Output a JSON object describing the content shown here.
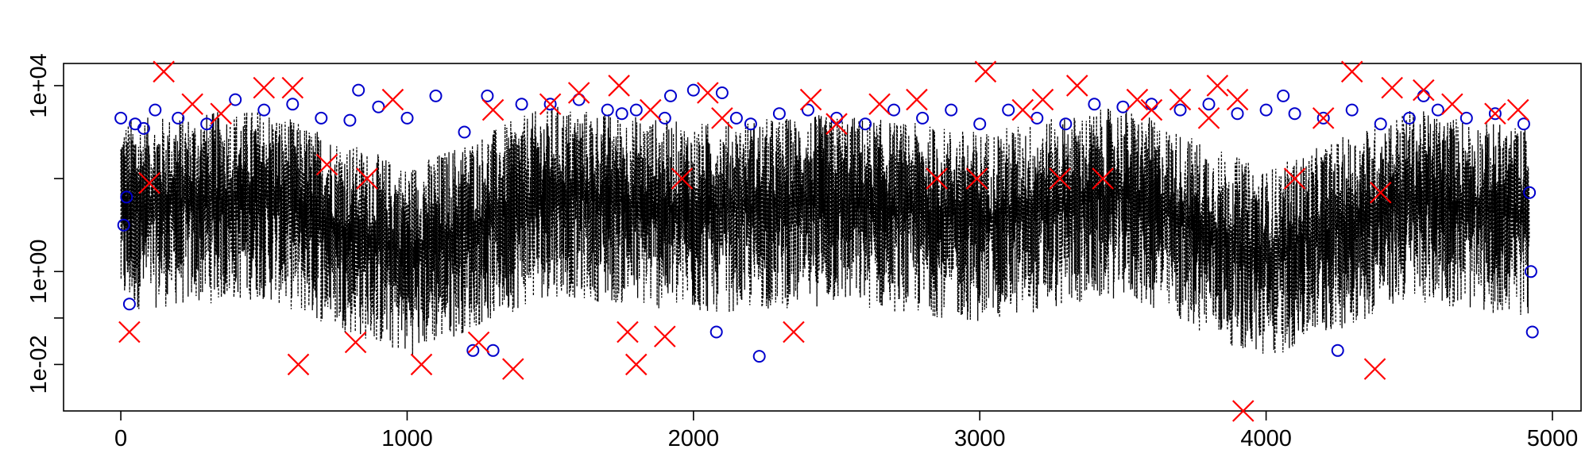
{
  "chart_data": {
    "type": "scatter",
    "title": "",
    "xlabel": "",
    "ylabel": "",
    "xlim": [
      -200,
      5100
    ],
    "ylim": [
      0.001,
      30000
    ],
    "y_scale": "log",
    "x_ticks": [
      0,
      1000,
      2000,
      3000,
      4000,
      5000
    ],
    "x_tick_labels": [
      "0",
      "1000",
      "2000",
      "3000",
      "4000",
      "5000"
    ],
    "y_ticks": [
      0.01,
      1,
      10000
    ],
    "y_tick_labels": [
      "1e-02",
      "1e+00",
      "1e+04"
    ],
    "y_minor_ticks": [
      0.1,
      100
    ],
    "n_points": 4920,
    "colors": {
      "trace": "#000000",
      "circles": "#0000cc",
      "crosses": "#ff0000"
    },
    "series": [
      {
        "marker": "dashed-line",
        "values_description": "dense dashed black trace",
        "x": [
          0,
          500,
          1000,
          1500,
          2000,
          2500,
          3000,
          3500,
          4000,
          4500,
          4920
        ],
        "y": [
          100,
          1000,
          0.01,
          2000,
          50,
          300,
          10,
          1500,
          0.005,
          800,
          20
        ]
      },
      {
        "marker": "circle",
        "x": [
          0,
          10,
          20,
          30,
          50,
          80,
          120,
          200,
          300,
          400,
          500,
          600,
          700,
          800,
          830,
          900,
          1000,
          1100,
          1200,
          1230,
          1280,
          1300,
          1400,
          1500,
          1600,
          1700,
          1750,
          1800,
          1900,
          1920,
          2000,
          2080,
          2100,
          2150,
          2200,
          2230,
          2300,
          2400,
          2500,
          2600,
          2700,
          2800,
          2900,
          3000,
          3100,
          3200,
          3300,
          3400,
          3500,
          3600,
          3700,
          3800,
          3900,
          4000,
          4060,
          4100,
          4200,
          4250,
          4300,
          4400,
          4500,
          4550,
          4600,
          4700,
          4800,
          4900,
          4920,
          4925,
          4930
        ],
        "y": [
          2000,
          10,
          40,
          0.2,
          1500,
          1200,
          3000,
          2000,
          1500,
          5000,
          3000,
          4000,
          2000,
          1800,
          8000,
          3500,
          2000,
          6000,
          1000,
          0.02,
          6000,
          0.02,
          4000,
          4000,
          5000,
          3000,
          2500,
          3000,
          2000,
          6000,
          8000,
          0.05,
          7000,
          2000,
          1500,
          0.015,
          2500,
          3000,
          2000,
          1500,
          3000,
          2000,
          3000,
          1500,
          3000,
          2000,
          1500,
          4000,
          3500,
          4000,
          3000,
          4000,
          2500,
          3000,
          6000,
          2500,
          2000,
          0.02,
          3000,
          1500,
          2000,
          6000,
          3000,
          2000,
          2500,
          1500,
          50,
          1,
          0.05
        ]
      },
      {
        "marker": "cross",
        "x": [
          30,
          100,
          150,
          250,
          350,
          500,
          600,
          620,
          720,
          820,
          860,
          950,
          1050,
          1250,
          1300,
          1370,
          1500,
          1600,
          1740,
          1770,
          1800,
          1850,
          1900,
          1960,
          2050,
          2100,
          2350,
          2410,
          2500,
          2650,
          2780,
          2850,
          2990,
          3020,
          3150,
          3220,
          3280,
          3340,
          3430,
          3550,
          3600,
          3700,
          3800,
          3830,
          3900,
          3920,
          4100,
          4200,
          4300,
          4380,
          4400,
          4440,
          4550,
          4650,
          4800,
          4880
        ],
        "y": [
          0.05,
          80,
          20000,
          4000,
          2500,
          9000,
          9000,
          0.01,
          200,
          0.03,
          100,
          5000,
          0.01,
          0.03,
          3000,
          0.008,
          4000,
          7000,
          10000,
          0.05,
          0.01,
          3000,
          0.04,
          100,
          7000,
          2000,
          0.05,
          5000,
          1500,
          4000,
          5000,
          100,
          100,
          20000,
          3000,
          5000,
          100,
          10000,
          100,
          5000,
          3000,
          5000,
          2000,
          10000,
          5000,
          0.001,
          100,
          2000,
          20000,
          0.008,
          50,
          9000,
          8000,
          4000,
          2500,
          3000
        ]
      }
    ]
  }
}
